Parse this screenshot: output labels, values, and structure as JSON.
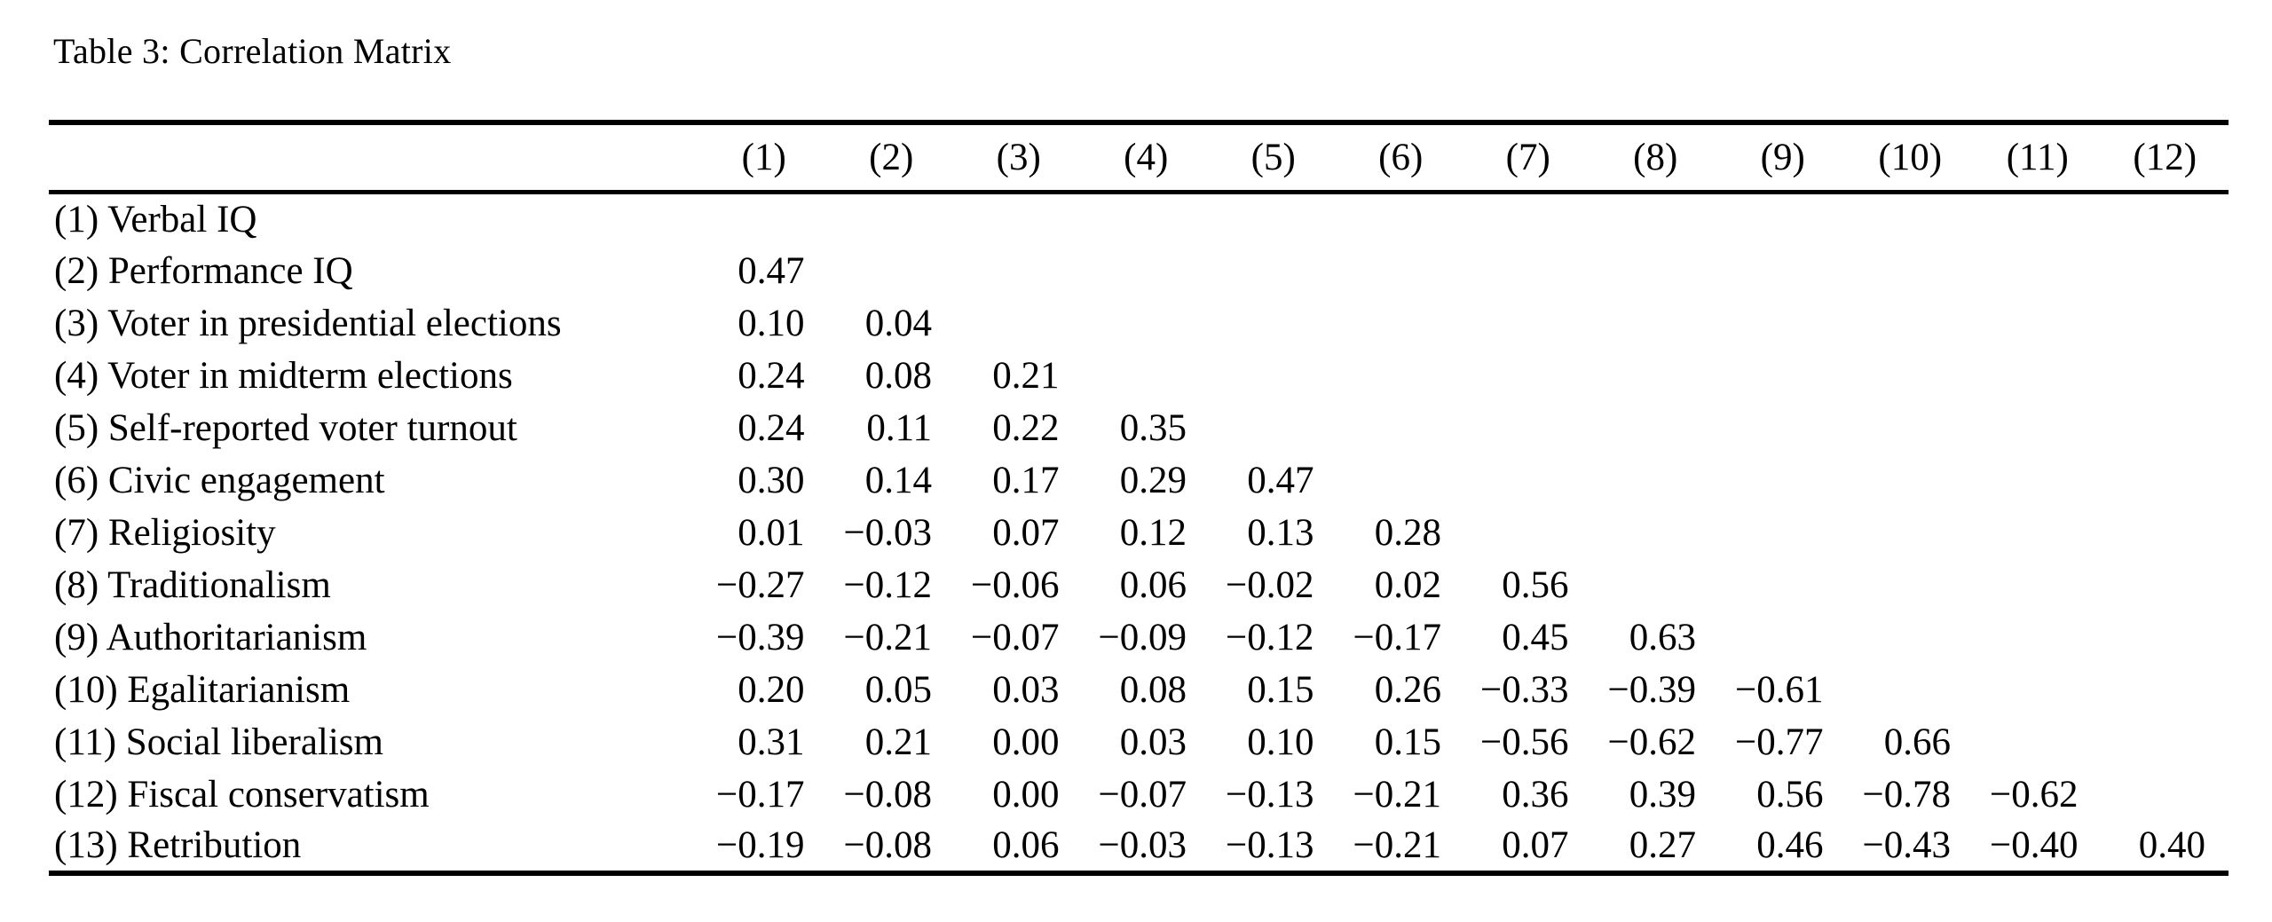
{
  "caption": "Table 3: Correlation Matrix",
  "chart_data": {
    "type": "table",
    "title": "Table 3: Correlation Matrix",
    "column_headers": [
      "(1)",
      "(2)",
      "(3)",
      "(4)",
      "(5)",
      "(6)",
      "(7)",
      "(8)",
      "(9)",
      "(10)",
      "(11)",
      "(12)"
    ],
    "rows": [
      {
        "label": "(1) Verbal IQ",
        "values": []
      },
      {
        "label": "(2) Performance IQ",
        "values": [
          "0.47"
        ]
      },
      {
        "label": "(3) Voter in presidential elections",
        "values": [
          "0.10",
          "0.04"
        ]
      },
      {
        "label": "(4) Voter in midterm elections",
        "values": [
          "0.24",
          "0.08",
          "0.21"
        ]
      },
      {
        "label": "(5) Self-reported voter turnout",
        "values": [
          "0.24",
          "0.11",
          "0.22",
          "0.35"
        ]
      },
      {
        "label": "(6) Civic engagement",
        "values": [
          "0.30",
          "0.14",
          "0.17",
          "0.29",
          "0.47"
        ]
      },
      {
        "label": "(7) Religiosity",
        "values": [
          "0.01",
          "−0.03",
          "0.07",
          "0.12",
          "0.13",
          "0.28"
        ]
      },
      {
        "label": "(8) Traditionalism",
        "values": [
          "−0.27",
          "−0.12",
          "−0.06",
          "0.06",
          "−0.02",
          "0.02",
          "0.56"
        ]
      },
      {
        "label": "(9) Authoritarianism",
        "values": [
          "−0.39",
          "−0.21",
          "−0.07",
          "−0.09",
          "−0.12",
          "−0.17",
          "0.45",
          "0.63"
        ]
      },
      {
        "label": "(10) Egalitarianism",
        "values": [
          "0.20",
          "0.05",
          "0.03",
          "0.08",
          "0.15",
          "0.26",
          "−0.33",
          "−0.39",
          "−0.61"
        ]
      },
      {
        "label": "(11) Social liberalism",
        "values": [
          "0.31",
          "0.21",
          "0.00",
          "0.03",
          "0.10",
          "0.15",
          "−0.56",
          "−0.62",
          "−0.77",
          "0.66"
        ]
      },
      {
        "label": "(12) Fiscal conservatism",
        "values": [
          "−0.17",
          "−0.08",
          "0.00",
          "−0.07",
          "−0.13",
          "−0.21",
          "0.36",
          "0.39",
          "0.56",
          "−0.78",
          "−0.62"
        ]
      },
      {
        "label": "(13) Retribution",
        "values": [
          "−0.19",
          "−0.08",
          "0.06",
          "−0.03",
          "−0.13",
          "−0.21",
          "0.07",
          "0.27",
          "0.46",
          "−0.43",
          "−0.40",
          "0.40"
        ]
      }
    ]
  }
}
